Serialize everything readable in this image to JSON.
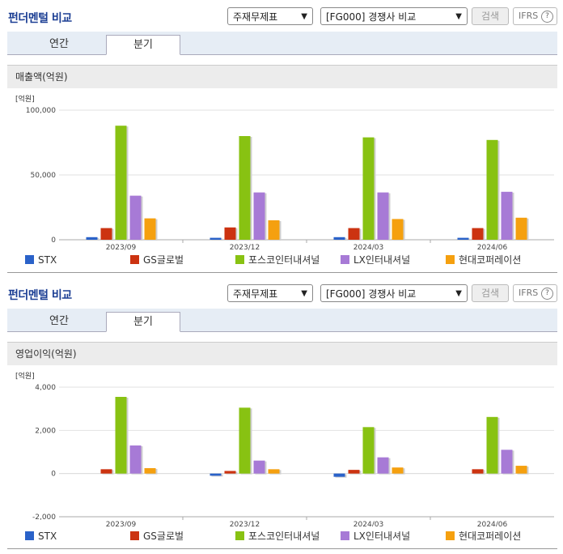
{
  "panels": [
    {
      "title": "펀더멘털 비교",
      "select1": "주재무제표",
      "select2": "[FG000] 경쟁사 비교",
      "search_label": "검색",
      "ifrs_label": "IFRS",
      "ifrs_help": "?",
      "tabs": [
        "연간",
        "분기"
      ],
      "active_tab": 1,
      "section_title": "매출액(억원)"
    },
    {
      "title": "펀더멘털 비교",
      "select1": "주재무제표",
      "select2": "[FG000] 경쟁사 비교",
      "search_label": "검색",
      "ifrs_label": "IFRS",
      "ifrs_help": "?",
      "tabs": [
        "연간",
        "분기"
      ],
      "active_tab": 1,
      "section_title": "영업이익(억원)"
    }
  ],
  "colors": {
    "STX": "#2a62c9",
    "GS글로벌": "#cc3311",
    "포스코인터내셔널": "#88c212",
    "LX인터내셔널": "#a77ad6",
    "현대코퍼레이션": "#f5a00f"
  },
  "chart_data": [
    {
      "type": "bar",
      "unit_label": "[억원]",
      "categories": [
        "2023/09",
        "2023/12",
        "2024/03",
        "2024/06"
      ],
      "ylim": [
        0,
        100000
      ],
      "yticks": [
        0,
        50000,
        100000
      ],
      "ytick_labels": [
        "0",
        "50,000",
        "100,000"
      ],
      "series": [
        {
          "name": "STX",
          "values": [
            2000,
            1500,
            2000,
            1500
          ]
        },
        {
          "name": "GS글로벌",
          "values": [
            9000,
            9500,
            9000,
            9000
          ]
        },
        {
          "name": "포스코인터내셔널",
          "values": [
            88000,
            80000,
            79000,
            77000
          ]
        },
        {
          "name": "LX인터내셔널",
          "values": [
            34000,
            36500,
            36500,
            37000
          ]
        },
        {
          "name": "현대코퍼레이션",
          "values": [
            16500,
            15000,
            16000,
            17000
          ]
        }
      ]
    },
    {
      "type": "bar",
      "unit_label": "[억원]",
      "categories": [
        "2023/09",
        "2023/12",
        "2024/03",
        "2024/06"
      ],
      "ylim": [
        -2000,
        4000
      ],
      "yticks": [
        -2000,
        0,
        2000,
        4000
      ],
      "ytick_labels": [
        "-2,000",
        "0",
        "2,000",
        "4,000"
      ],
      "series": [
        {
          "name": "STX",
          "values": [
            0,
            -100,
            -150,
            0
          ]
        },
        {
          "name": "GS글로벌",
          "values": [
            200,
            120,
            170,
            200
          ]
        },
        {
          "name": "포스코인터내셔널",
          "values": [
            3550,
            3050,
            2150,
            2620
          ]
        },
        {
          "name": "LX인터내셔널",
          "values": [
            1300,
            600,
            750,
            1100
          ]
        },
        {
          "name": "현대코퍼레이션",
          "values": [
            250,
            200,
            280,
            360
          ]
        }
      ]
    }
  ]
}
